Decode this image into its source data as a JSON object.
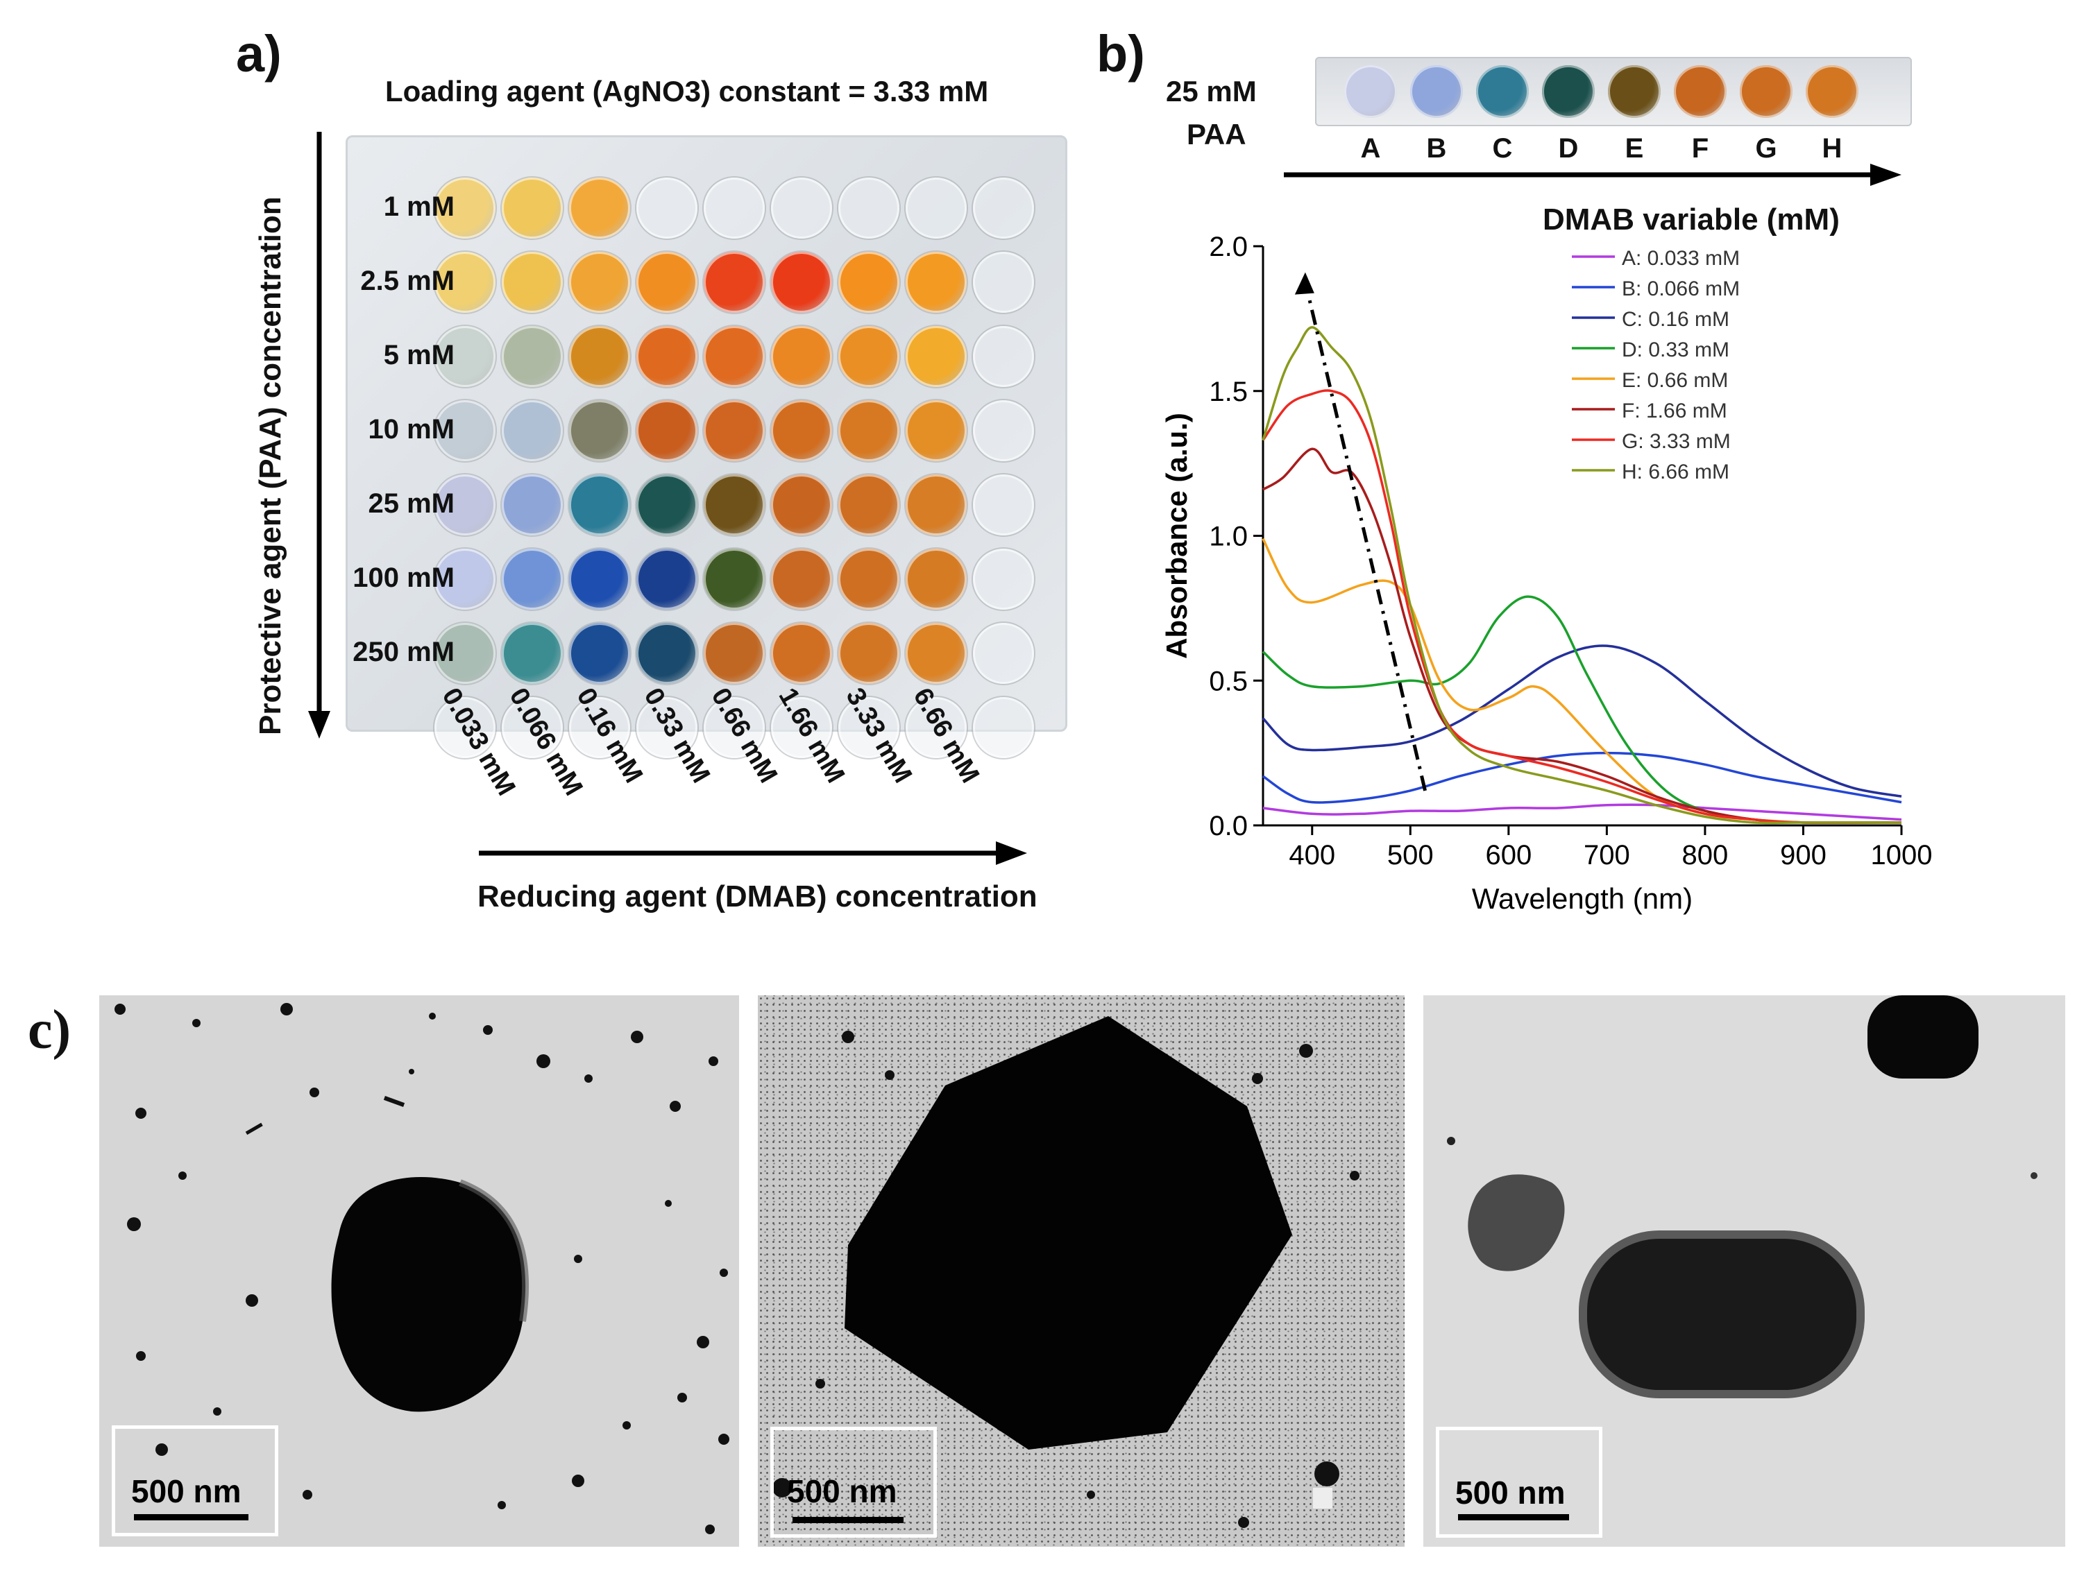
{
  "panel_a": {
    "letter": "a)",
    "title": "Loading agent (AgNO3) constant = 3.33 mM",
    "y_axis": "Protective agent (PAA) concentration",
    "x_axis": "Reducing agent (DMAB) concentration",
    "rows": [
      "1 mM",
      "2.5 mM",
      "5 mM",
      "10 mM",
      "25 mM",
      "100 mM",
      "250 mM"
    ],
    "cols": [
      "0.033 mM",
      "0.066 mM",
      "0.16 mM",
      "0.33 mM",
      "0.66 mM",
      "1.66 mM",
      "3.33 mM",
      "6.66 mM"
    ],
    "well_colors": [
      [
        "#f1d27a",
        "#f0c75a",
        "#f2a93a",
        null,
        null,
        null,
        null,
        null
      ],
      [
        "#f0d070",
        "#efc250",
        "#f0a433",
        "#f08e22",
        "#e8431b",
        "#ea3b18",
        "#f3901e",
        "#f39a23"
      ],
      [
        "#c9d3cf",
        "#aeb9a3",
        "#d4891f",
        "#df6a1f",
        "#e06a20",
        "#ea8722",
        "#ea8f24",
        "#f2ab2b"
      ],
      [
        "#c3cdd6",
        "#b0c0d4",
        "#7e7f66",
        "#c95d1e",
        "#cf6520",
        "#d26d1f",
        "#d77922",
        "#e48e26"
      ],
      [
        "#c1c5e0",
        "#8ea5d8",
        "#2a7c97",
        "#1d5552",
        "#6f5219",
        "#c76520",
        "#cd6e22",
        "#d77d25"
      ],
      [
        "#bfc8e8",
        "#6f93d6",
        "#1e4fb0",
        "#1b3f8f",
        "#3f5a24",
        "#c86823",
        "#ce6f22",
        "#d57b24"
      ],
      [
        "#a9bdb4",
        "#3b8d92",
        "#1b4d94",
        "#1a4a6d",
        "#c06723",
        "#d06e22",
        "#d37623",
        "#dc8326"
      ]
    ]
  },
  "panel_b": {
    "letter": "b)",
    "strip_label_1": "25 mM",
    "strip_label_2": "PAA",
    "strip_letters": [
      "A",
      "B",
      "C",
      "D",
      "E",
      "F",
      "G",
      "H"
    ],
    "strip_colors": [
      "#c6cbe6",
      "#8fa6dc",
      "#2f7b95",
      "#1b504c",
      "#6a5018",
      "#c6661f",
      "#cb6c20",
      "#d27622"
    ],
    "legend_title": "DMAB variable (mM)",
    "chart_data": {
      "type": "line",
      "xlabel": "Wavelength (nm)",
      "ylabel": "Absorbance (a.u.)",
      "xlim": [
        350,
        1000
      ],
      "ylim": [
        0.0,
        2.0
      ],
      "xticks": [
        "400",
        "500",
        "600",
        "700",
        "800",
        "900",
        "1000"
      ],
      "yticks": [
        "0.0",
        "0.5",
        "1.0",
        "1.5",
        "2.0"
      ],
      "legend": [
        "A: 0.033 mM",
        "B: 0.066 mM",
        "C: 0.16 mM",
        "D: 0.33 mM",
        "E: 0.66 mM",
        "F: 1.66 mM",
        "G: 3.33 mM",
        "H: 6.66 mM"
      ],
      "colors": [
        "#b23be0",
        "#2346d6",
        "#24309a",
        "#1aa12c",
        "#f4a21c",
        "#a81c1c",
        "#ec2a22",
        "#8a9a1c"
      ],
      "series": [
        {
          "name": "A: 0.033 mM",
          "x": [
            350,
            400,
            450,
            500,
            550,
            600,
            650,
            700,
            750,
            800,
            850,
            900,
            950,
            1000
          ],
          "y": [
            0.06,
            0.04,
            0.04,
            0.05,
            0.05,
            0.06,
            0.06,
            0.07,
            0.07,
            0.06,
            0.05,
            0.04,
            0.03,
            0.02
          ]
        },
        {
          "name": "B: 0.066 mM",
          "x": [
            350,
            375,
            400,
            450,
            500,
            550,
            600,
            650,
            700,
            750,
            800,
            850,
            900,
            950,
            1000
          ],
          "y": [
            0.17,
            0.11,
            0.08,
            0.09,
            0.12,
            0.17,
            0.21,
            0.24,
            0.25,
            0.24,
            0.21,
            0.17,
            0.14,
            0.11,
            0.08
          ]
        },
        {
          "name": "C: 0.16 mM",
          "x": [
            350,
            375,
            400,
            450,
            500,
            550,
            600,
            650,
            700,
            750,
            800,
            850,
            900,
            950,
            1000
          ],
          "y": [
            0.37,
            0.28,
            0.26,
            0.27,
            0.29,
            0.36,
            0.47,
            0.58,
            0.62,
            0.56,
            0.43,
            0.3,
            0.2,
            0.13,
            0.1
          ]
        },
        {
          "name": "D: 0.33 mM",
          "x": [
            350,
            375,
            400,
            450,
            500,
            530,
            560,
            590,
            620,
            650,
            680,
            720,
            760,
            800,
            850,
            900,
            950,
            1000
          ],
          "y": [
            0.6,
            0.52,
            0.48,
            0.48,
            0.5,
            0.49,
            0.56,
            0.72,
            0.79,
            0.72,
            0.52,
            0.28,
            0.12,
            0.05,
            0.02,
            0.01,
            0.01,
            0.01
          ]
        },
        {
          "name": "E: 0.66 mM",
          "x": [
            350,
            375,
            400,
            450,
            480,
            500,
            530,
            560,
            600,
            625,
            650,
            700,
            750,
            800,
            850,
            900,
            950,
            1000
          ],
          "y": [
            0.99,
            0.82,
            0.77,
            0.83,
            0.84,
            0.76,
            0.5,
            0.4,
            0.44,
            0.48,
            0.43,
            0.25,
            0.1,
            0.04,
            0.02,
            0.01,
            0.01,
            0.01
          ]
        },
        {
          "name": "F: 1.66 mM",
          "x": [
            350,
            370,
            400,
            420,
            440,
            460,
            480,
            500,
            530,
            560,
            600,
            650,
            700,
            750,
            800,
            850,
            900,
            1000
          ],
          "y": [
            1.16,
            1.2,
            1.3,
            1.22,
            1.22,
            1.1,
            0.9,
            0.65,
            0.38,
            0.28,
            0.24,
            0.22,
            0.17,
            0.1,
            0.05,
            0.02,
            0.01,
            0.01
          ]
        },
        {
          "name": "G: 3.33 mM",
          "x": [
            350,
            375,
            400,
            420,
            440,
            460,
            480,
            500,
            530,
            560,
            600,
            650,
            700,
            750,
            800,
            850,
            900,
            1000
          ],
          "y": [
            1.33,
            1.45,
            1.49,
            1.5,
            1.46,
            1.32,
            1.05,
            0.72,
            0.4,
            0.28,
            0.24,
            0.2,
            0.15,
            0.09,
            0.04,
            0.02,
            0.01,
            0.01
          ]
        },
        {
          "name": "H: 6.66 mM",
          "x": [
            350,
            370,
            385,
            400,
            420,
            440,
            460,
            480,
            500,
            530,
            560,
            600,
            650,
            700,
            750,
            800,
            850,
            900,
            1000
          ],
          "y": [
            1.33,
            1.55,
            1.65,
            1.72,
            1.65,
            1.57,
            1.4,
            1.1,
            0.76,
            0.4,
            0.26,
            0.2,
            0.16,
            0.12,
            0.07,
            0.03,
            0.01,
            0.01,
            0.01
          ]
        }
      ],
      "annotation": "dash-dot arrow from (515 nm, 0.12) to (395 nm, 1.88)"
    }
  },
  "panel_c": {
    "letter": "c)",
    "scale_labels": [
      "500 nm",
      "500 nm",
      "500 nm"
    ]
  }
}
